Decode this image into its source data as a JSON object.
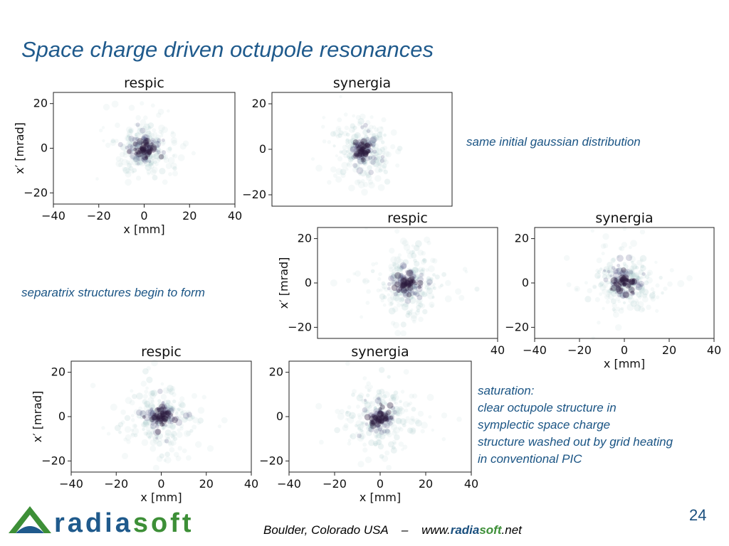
{
  "slide": {
    "title": "Space charge driven octupole resonances",
    "page_number": "24"
  },
  "notes": {
    "initial": "same initial gaussian distribution",
    "separatrix": "separatrix structures begin to form",
    "saturation": [
      "saturation:",
      "clear octupole structure in",
      "symplectic space charge",
      "structure washed out by grid heating",
      "in conventional PIC"
    ]
  },
  "footer": {
    "location": "Boulder, Colorado  USA",
    "dash": "–",
    "url_prefix": "www.",
    "url_brand1": "radia",
    "url_brand2": "soft",
    "url_suffix": ".net"
  },
  "logo": {
    "text": "radiasoft",
    "colors": {
      "blue": "#1f5a8c",
      "green": "#3d8f37"
    }
  },
  "colors": {
    "density_dark": "#2a1b3d",
    "density_mid": "#5a5a88",
    "density_light": "#9cc4c0",
    "note_text": "#1a5484"
  },
  "chart_data": [
    {
      "type": "heatmap",
      "title": "respic",
      "xlabel": "x [mm]",
      "ylabel": "x′ [mrad]",
      "xlim": [
        -40,
        40
      ],
      "ylim": [
        -25,
        25
      ],
      "xticks": [
        "−40",
        "−20",
        "0",
        "20",
        "40"
      ],
      "yticks": [
        "−20",
        "0",
        "20"
      ],
      "distribution": "gaussian",
      "spread": 1.0,
      "octupole": 0
    },
    {
      "type": "heatmap",
      "title": "synergia",
      "xlabel": "",
      "ylabel": "",
      "xlim": [
        -40,
        40
      ],
      "ylim": [
        -25,
        25
      ],
      "xticks": [],
      "yticks": [
        "−20",
        "0",
        "20"
      ],
      "distribution": "gaussian",
      "spread": 1.0,
      "octupole": 0
    },
    {
      "type": "heatmap",
      "title": "respic",
      "xlabel": "",
      "ylabel": "x′ [mrad]",
      "xlim": [
        -40,
        40
      ],
      "ylim": [
        -25,
        25
      ],
      "xticks": [
        "40"
      ],
      "yticks": [
        "−20",
        "0",
        "20"
      ],
      "distribution": "separatrix",
      "spread": 1.3,
      "octupole": 0.6
    },
    {
      "type": "heatmap",
      "title": "synergia",
      "xlabel": "x [mm]",
      "ylabel": "",
      "xlim": [
        -40,
        40
      ],
      "ylim": [
        -25,
        25
      ],
      "xticks": [
        "−40",
        "−20",
        "0",
        "20",
        "40"
      ],
      "yticks": [
        "−20",
        "0",
        "20"
      ],
      "distribution": "separatrix",
      "spread": 1.2,
      "octupole": 0.35
    },
    {
      "type": "heatmap",
      "title": "respic",
      "xlabel": "x [mm]",
      "ylabel": "x′ [mrad]",
      "xlim": [
        -40,
        40
      ],
      "ylim": [
        -25,
        25
      ],
      "xticks": [
        "−40",
        "−20",
        "0",
        "20",
        "40"
      ],
      "yticks": [
        "−20",
        "0",
        "20"
      ],
      "distribution": "octupole",
      "spread": 1.35,
      "octupole": 0.8
    },
    {
      "type": "heatmap",
      "title": "synergia",
      "xlabel": "x [mm]",
      "ylabel": "",
      "xlim": [
        -40,
        40
      ],
      "ylim": [
        -25,
        25
      ],
      "xticks": [
        "−40",
        "−20",
        "0",
        "20",
        "40"
      ],
      "yticks": [
        "−20",
        "0",
        "20"
      ],
      "distribution": "washed-out",
      "spread": 1.25,
      "octupole": 0.1
    }
  ]
}
